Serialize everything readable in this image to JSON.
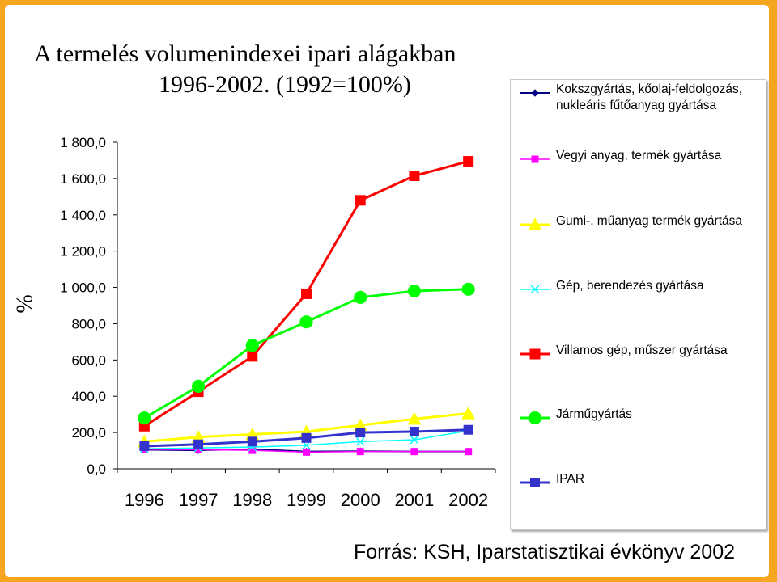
{
  "chart_data": {
    "type": "line",
    "title": "A termelés volumenindexei ipari alágakban",
    "subtitle": "1996-2002. (1992=100%)",
    "ylabel": "%",
    "xlabel": "",
    "ylim": [
      0,
      1800
    ],
    "yticks": [
      "0,0",
      "200,0",
      "400,0",
      "600,0",
      "800,0",
      "1 000,0",
      "1 200,0",
      "1 400,0",
      "1 600,0",
      "1 800,0"
    ],
    "categories": [
      "1996",
      "1997",
      "1998",
      "1999",
      "2000",
      "2001",
      "2002"
    ],
    "grid": false,
    "legend_position": "right",
    "series": [
      {
        "name": "Kokszgyártás, kőolaj-feldolgozás, nukleáris fűtőanyag gyártása",
        "color": "#000080",
        "marker": "diamond",
        "values": [
          105,
          102,
          108,
          95,
          97,
          95,
          95
        ]
      },
      {
        "name": "Vegyi anyag, termék gyártása",
        "color": "#ff00ff",
        "marker": "square",
        "values": [
          108,
          105,
          102,
          92,
          95,
          95,
          95
        ]
      },
      {
        "name": "Gumi-, műanyag termék gyártása",
        "color": "#ffff00",
        "marker": "triangle",
        "values": [
          150,
          175,
          190,
          205,
          240,
          275,
          305
        ]
      },
      {
        "name": "Gép, berendezés gyártása",
        "color": "#00ffff",
        "marker": "x",
        "values": [
          110,
          115,
          120,
          130,
          150,
          160,
          210
        ]
      },
      {
        "name": "Villamos gép, műszer gyártása",
        "color": "#ff0000",
        "marker": "square",
        "values": [
          235,
          425,
          620,
          965,
          1480,
          1615,
          1695
        ]
      },
      {
        "name": "Járműgyártás",
        "color": "#00ff00",
        "marker": "circle",
        "values": [
          280,
          455,
          680,
          810,
          945,
          980,
          990
        ]
      },
      {
        "name": "IPAR",
        "color": "#3333cc",
        "marker": "square",
        "values": [
          125,
          135,
          150,
          170,
          200,
          205,
          215
        ]
      }
    ]
  },
  "legend": [
    "Kokszgyártás, kőolaj-feldolgozás, nukleáris fűtőanyag gyártása",
    "Vegyi anyag, termék gyártása",
    "Gumi-, műanyag termék gyártása",
    "Gép, berendezés gyártása",
    "Villamos gép, műszer gyártása",
    "Járműgyártás",
    "IPAR"
  ],
  "source": "Forrás: KSH, Iparstatisztikai évkönyv 2002"
}
